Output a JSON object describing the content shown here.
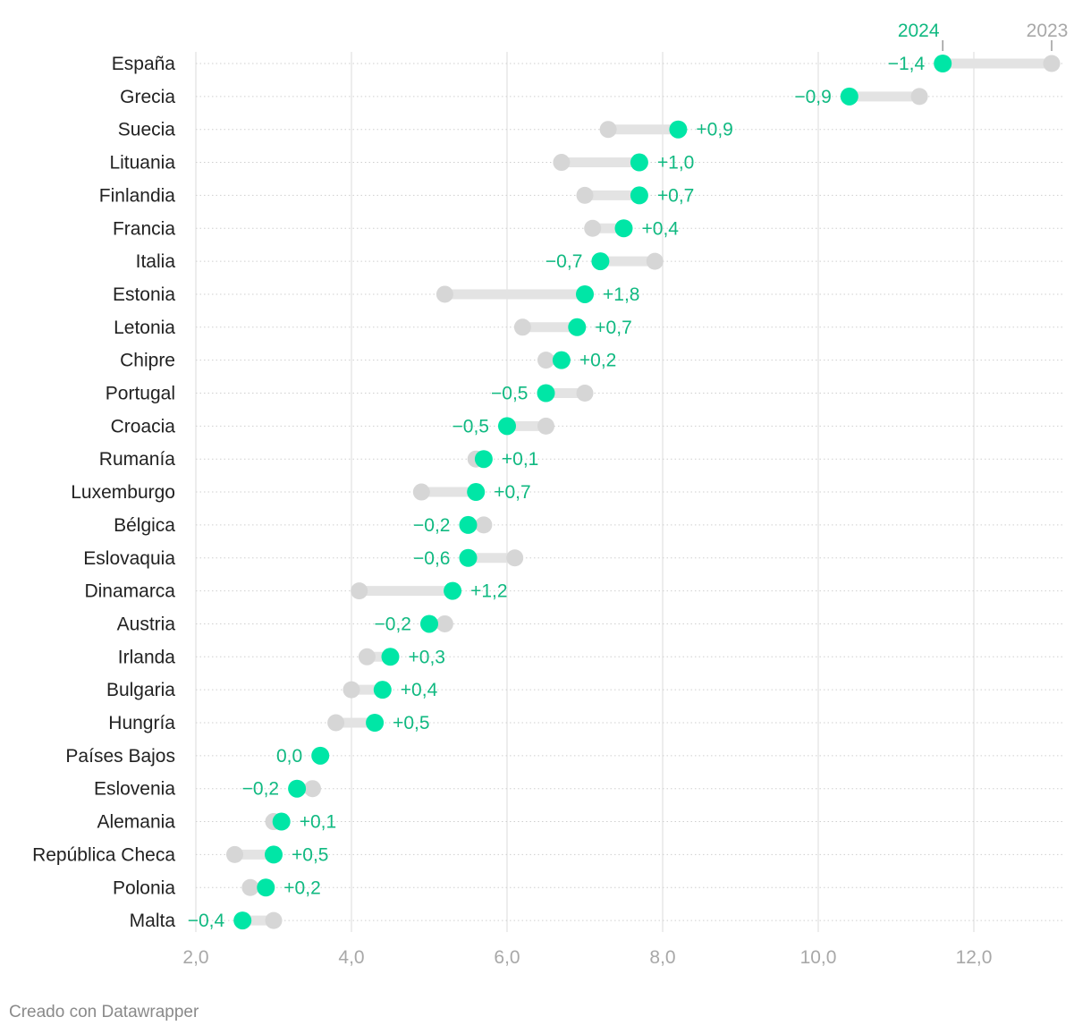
{
  "chart_data": {
    "type": "dot-range",
    "series": [
      {
        "name": "2024",
        "color": "#00e6a6",
        "label_color": "#10b981"
      },
      {
        "name": "2023",
        "color": "#d6d6d6",
        "label_color": "#a8a8a8"
      }
    ],
    "xlim": [
      2,
      13
    ],
    "x_ticks": [
      "2,0",
      "4,0",
      "6,0",
      "8,0",
      "10,0",
      "12,0"
    ],
    "x_tick_values": [
      2,
      4,
      6,
      8,
      10,
      12
    ],
    "grid": true,
    "rows": [
      {
        "country": "España",
        "v2023": 13.0,
        "v2024": 11.6,
        "delta": "−1,4"
      },
      {
        "country": "Grecia",
        "v2023": 11.3,
        "v2024": 10.4,
        "delta": "−0,9"
      },
      {
        "country": "Suecia",
        "v2023": 7.3,
        "v2024": 8.2,
        "delta": "+0,9"
      },
      {
        "country": "Lituania",
        "v2023": 6.7,
        "v2024": 7.7,
        "delta": "+1,0"
      },
      {
        "country": "Finlandia",
        "v2023": 7.0,
        "v2024": 7.7,
        "delta": "+0,7"
      },
      {
        "country": "Francia",
        "v2023": 7.1,
        "v2024": 7.5,
        "delta": "+0,4"
      },
      {
        "country": "Italia",
        "v2023": 7.9,
        "v2024": 7.2,
        "delta": "−0,7"
      },
      {
        "country": "Estonia",
        "v2023": 5.2,
        "v2024": 7.0,
        "delta": "+1,8"
      },
      {
        "country": "Letonia",
        "v2023": 6.2,
        "v2024": 6.9,
        "delta": "+0,7"
      },
      {
        "country": "Chipre",
        "v2023": 6.5,
        "v2024": 6.7,
        "delta": "+0,2"
      },
      {
        "country": "Portugal",
        "v2023": 7.0,
        "v2024": 6.5,
        "delta": "−0,5"
      },
      {
        "country": "Croacia",
        "v2023": 6.5,
        "v2024": 6.0,
        "delta": "−0,5"
      },
      {
        "country": "Rumanía",
        "v2023": 5.6,
        "v2024": 5.7,
        "delta": "+0,1"
      },
      {
        "country": "Luxemburgo",
        "v2023": 4.9,
        "v2024": 5.6,
        "delta": "+0,7"
      },
      {
        "country": "Bélgica",
        "v2023": 5.7,
        "v2024": 5.5,
        "delta": "−0,2"
      },
      {
        "country": "Eslovaquia",
        "v2023": 6.1,
        "v2024": 5.5,
        "delta": "−0,6"
      },
      {
        "country": "Dinamarca",
        "v2023": 4.1,
        "v2024": 5.3,
        "delta": "+1,2"
      },
      {
        "country": "Austria",
        "v2023": 5.2,
        "v2024": 5.0,
        "delta": "−0,2"
      },
      {
        "country": "Irlanda",
        "v2023": 4.2,
        "v2024": 4.5,
        "delta": "+0,3"
      },
      {
        "country": "Bulgaria",
        "v2023": 4.0,
        "v2024": 4.4,
        "delta": "+0,4"
      },
      {
        "country": "Hungría",
        "v2023": 3.8,
        "v2024": 4.3,
        "delta": "+0,5"
      },
      {
        "country": "Países Bajos",
        "v2023": 3.6,
        "v2024": 3.6,
        "delta": "0,0"
      },
      {
        "country": "Eslovenia",
        "v2023": 3.5,
        "v2024": 3.3,
        "delta": "−0,2"
      },
      {
        "country": "Alemania",
        "v2023": 3.0,
        "v2024": 3.1,
        "delta": "+0,1"
      },
      {
        "country": "República Checa",
        "v2023": 2.5,
        "v2024": 3.0,
        "delta": "+0,5"
      },
      {
        "country": "Polonia",
        "v2023": 2.7,
        "v2024": 2.9,
        "delta": "+0,2"
      },
      {
        "country": "Malta",
        "v2023": 3.0,
        "v2024": 2.6,
        "delta": "−0,4"
      }
    ]
  },
  "footer": {
    "credit": "Creado con Datawrapper"
  }
}
